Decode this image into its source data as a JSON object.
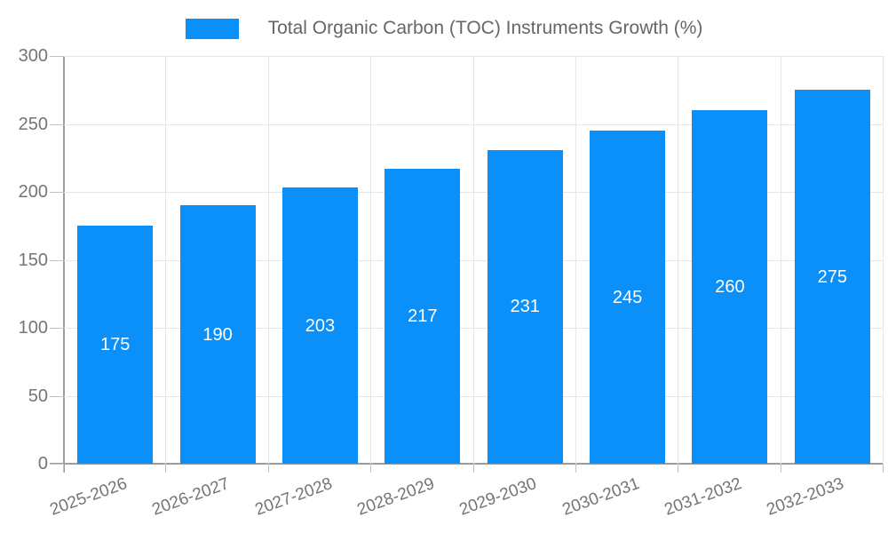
{
  "legend": {
    "label": "Total Organic Carbon (TOC) Instruments Growth (%)"
  },
  "chart_data": {
    "type": "bar",
    "title": "Total Organic Carbon (TOC) Instruments Growth (%)",
    "categories": [
      "2025-2026",
      "2026-2027",
      "2027-2028",
      "2028-2029",
      "2029-2030",
      "2030-2031",
      "2031-2032",
      "2032-2033"
    ],
    "values": [
      175,
      190,
      203,
      217,
      231,
      245,
      260,
      275
    ],
    "xlabel": "",
    "ylabel": "",
    "ylim": [
      0,
      300
    ],
    "yticks": [
      0,
      50,
      100,
      150,
      200,
      250,
      300
    ],
    "grid": true,
    "legend_position": "top",
    "value_labels": "centered-inside-bars"
  },
  "colors": {
    "bar": "#0b8ff8",
    "value_label": "#ffffff",
    "gridline": "#e6e6e6",
    "axis_line": "#9c9c9c",
    "tick_label": "#757575",
    "legend_text": "#666666",
    "background": "#ffffff"
  }
}
